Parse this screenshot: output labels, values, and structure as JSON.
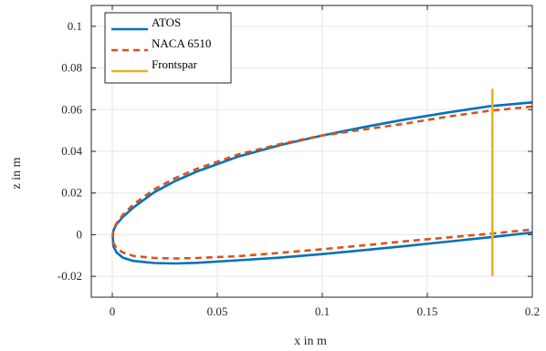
{
  "chart_data": {
    "type": "line",
    "title": "",
    "xlabel": "x in m",
    "ylabel": "z in m",
    "xlim": [
      -0.01,
      0.2
    ],
    "ylim": [
      -0.03,
      0.11
    ],
    "xticks": [
      0,
      0.05,
      0.1,
      0.15,
      0.2
    ],
    "xtick_labels": [
      "0",
      "0.05",
      "0.1",
      "0.15",
      "0.2"
    ],
    "yticks": [
      -0.02,
      0,
      0.02,
      0.04,
      0.06,
      0.08,
      0.1
    ],
    "ytick_labels": [
      "-0.02",
      "0",
      "0.02",
      "0.04",
      "0.06",
      "0.08",
      "0.1"
    ],
    "grid": true,
    "legend_position": "top-left",
    "series": [
      {
        "name": "ATOS",
        "color": "#0072BD",
        "style": "solid",
        "x": [
          0.2,
          0.18,
          0.16,
          0.14,
          0.12,
          0.1,
          0.08,
          0.06,
          0.04,
          0.03,
          0.02,
          0.01,
          0.005,
          0.002,
          0.0005,
          0.0002,
          0.0005,
          0.002,
          0.005,
          0.01,
          0.02,
          0.03,
          0.04,
          0.06,
          0.08,
          0.1,
          0.12,
          0.14,
          0.16,
          0.18,
          0.2
        ],
        "y": [
          0.0635,
          0.0617,
          0.0587,
          0.0554,
          0.0517,
          0.0476,
          0.043,
          0.0375,
          0.0302,
          0.0258,
          0.0204,
          0.013,
          0.0085,
          0.005,
          0.002,
          -0.001,
          -0.0055,
          -0.0085,
          -0.011,
          -0.0126,
          -0.0136,
          -0.0138,
          -0.0135,
          -0.0123,
          -0.011,
          -0.0093,
          -0.0074,
          -0.0054,
          -0.0033,
          -0.0012,
          0.001
        ]
      },
      {
        "name": "NACA 6510",
        "color": "#D95319",
        "style": "dashed",
        "x": [
          0.2,
          0.18,
          0.16,
          0.14,
          0.12,
          0.1,
          0.08,
          0.06,
          0.04,
          0.03,
          0.02,
          0.01,
          0.005,
          0.002,
          0.0005,
          0.0002,
          0.0005,
          0.002,
          0.005,
          0.01,
          0.02,
          0.03,
          0.04,
          0.06,
          0.08,
          0.1,
          0.12,
          0.14,
          0.16,
          0.18,
          0.2
        ],
        "y": [
          0.0615,
          0.0595,
          0.0567,
          0.0534,
          0.0505,
          0.0476,
          0.0435,
          0.0385,
          0.0315,
          0.0272,
          0.0218,
          0.0145,
          0.0095,
          0.0055,
          0.0025,
          0.0,
          -0.004,
          -0.0065,
          -0.0085,
          -0.0102,
          -0.0112,
          -0.0114,
          -0.0112,
          -0.0103,
          -0.0087,
          -0.007,
          -0.0051,
          -0.0031,
          -0.0013,
          0.0005,
          0.0025
        ]
      },
      {
        "name": "Frontspar",
        "color": "#EDB120",
        "style": "solid",
        "x": [
          0.181,
          0.181
        ],
        "y": [
          -0.02,
          0.07
        ]
      }
    ]
  }
}
